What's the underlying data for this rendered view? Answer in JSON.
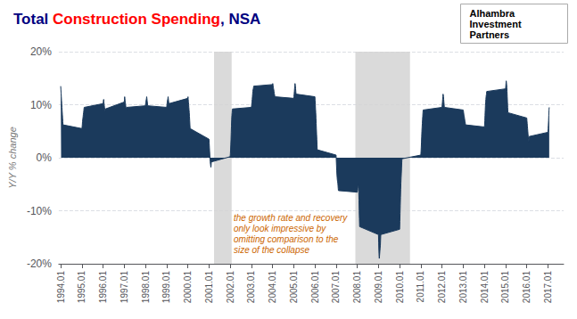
{
  "chart_data": {
    "type": "area",
    "title": "Total Construction Spending, NSA",
    "title_highlight": "Construction Spending",
    "title_color": "navy",
    "highlight_color": "red",
    "ylabel": "Y/Y % change",
    "color": "#1b3a5c",
    "grid": true,
    "xlim": [
      1993.92,
      2017.75
    ],
    "xticks": [
      1994.01,
      1995.01,
      1996.01,
      1997.01,
      1998.01,
      1999.01,
      2000.01,
      2001.01,
      2002.01,
      2003.01,
      2004.01,
      2005.01,
      2006.01,
      2007.01,
      2008.01,
      2009.01,
      2010.01,
      2011.01,
      2012.01,
      2013.01,
      2014.01,
      2015.01,
      2016.01,
      2017.01
    ],
    "ylim": [
      -20,
      20
    ],
    "yticks": [
      {
        "value": -20,
        "label": "-20%"
      },
      {
        "value": -10,
        "label": "-10%"
      },
      {
        "value": 0,
        "label": "0%"
      },
      {
        "value": 10,
        "label": "10%"
      },
      {
        "value": 20,
        "label": "20%"
      }
    ],
    "recessions": [
      [
        2001.25,
        2002.08
      ],
      [
        2007.92,
        2010.5
      ]
    ],
    "annotations": [
      {
        "text": "the growth rate and recovery\nonly look impressive by\nomitting comparison to the\nsize of the collapse",
        "color": "#cc6600"
      }
    ],
    "logo_text": [
      "Alhambra",
      "Investment",
      "Partners"
    ],
    "x": [
      1994.01,
      1994.02,
      1994.03,
      1994.04,
      1994.05,
      1994.06,
      1994.07,
      1994.08,
      1994.09,
      1994.1,
      1994.11,
      1994.12,
      1995.01,
      1995.02,
      1995.03,
      1995.04,
      1995.05,
      1995.06,
      1995.07,
      1995.08,
      1995.09,
      1995.1,
      1995.11,
      1995.12,
      1996.01,
      1996.02,
      1996.03,
      1996.04,
      1996.05,
      1996.06,
      1996.07,
      1996.08,
      1996.09,
      1996.1,
      1996.11,
      1996.12,
      1997.01,
      1997.02,
      1997.03,
      1997.04,
      1997.05,
      1997.06,
      1997.07,
      1997.08,
      1997.09,
      1997.1,
      1997.11,
      1997.12,
      1998.01,
      1998.02,
      1998.03,
      1998.04,
      1998.05,
      1998.06,
      1998.07,
      1998.08,
      1998.09,
      1998.1,
      1998.11,
      1998.12,
      1999.01,
      1999.02,
      1999.03,
      1999.04,
      1999.05,
      1999.06,
      1999.07,
      1999.08,
      1999.09,
      1999.1,
      1999.11,
      1999.12,
      2000.01,
      2000.02,
      2000.03,
      2000.04,
      2000.05,
      2000.06,
      2000.07,
      2000.08,
      2000.09,
      2000.1,
      2000.11,
      2000.12,
      2001.01,
      2001.02,
      2001.03,
      2001.04,
      2001.05,
      2001.06,
      2001.07,
      2001.08,
      2001.09,
      2001.1,
      2001.11,
      2001.12,
      2002.01,
      2002.02,
      2002.03,
      2002.04,
      2002.05,
      2002.06,
      2002.07,
      2002.08,
      2002.09,
      2002.1,
      2002.11,
      2002.12,
      2003.01,
      2003.02,
      2003.03,
      2003.04,
      2003.05,
      2003.06,
      2003.07,
      2003.08,
      2003.09,
      2003.1,
      2003.11,
      2003.12,
      2004.01,
      2004.02,
      2004.03,
      2004.04,
      2004.05,
      2004.06,
      2004.07,
      2004.08,
      2004.09,
      2004.1,
      2004.11,
      2004.12,
      2005.01,
      2005.02,
      2005.03,
      2005.04,
      2005.05,
      2005.06,
      2005.07,
      2005.08,
      2005.09,
      2005.1,
      2005.11,
      2005.12,
      2006.01,
      2006.02,
      2006.03,
      2006.04,
      2006.05,
      2006.06,
      2006.07,
      2006.08,
      2006.09,
      2006.1,
      2006.11,
      2006.12,
      2007.01,
      2007.02,
      2007.03,
      2007.04,
      2007.05,
      2007.06,
      2007.07,
      2007.08,
      2007.09,
      2007.1,
      2007.11,
      2007.12,
      2008.01,
      2008.02,
      2008.03,
      2008.04,
      2008.05,
      2008.06,
      2008.07,
      2008.08,
      2008.09,
      2008.1,
      2008.11,
      2008.12,
      2009.01,
      2009.02,
      2009.03,
      2009.04,
      2009.05,
      2009.06,
      2009.07,
      2009.08,
      2009.09,
      2009.1,
      2009.11,
      2009.12,
      2010.01,
      2010.02,
      2010.03,
      2010.04,
      2010.05,
      2010.06,
      2010.07,
      2010.08,
      2010.09,
      2010.1,
      2010.11,
      2010.12,
      2011.01,
      2011.02,
      2011.03,
      2011.04,
      2011.05,
      2011.06,
      2011.07,
      2011.08,
      2011.09,
      2011.1,
      2011.11,
      2011.12,
      2012.01,
      2012.02,
      2012.03,
      2012.04,
      2012.05,
      2012.06,
      2012.07,
      2012.08,
      2012.09,
      2012.1,
      2012.11,
      2012.12,
      2013.01,
      2013.02,
      2013.03,
      2013.04,
      2013.05,
      2013.06,
      2013.07,
      2013.08,
      2013.09,
      2013.1,
      2013.11,
      2013.12,
      2014.01,
      2014.02,
      2014.03,
      2014.04,
      2014.05,
      2014.06,
      2014.07,
      2014.08,
      2014.09,
      2014.1,
      2014.11,
      2014.12,
      2015.01,
      2015.02,
      2015.03,
      2015.04,
      2015.05,
      2015.06,
      2015.07,
      2015.08,
      2015.09,
      2015.1,
      2015.11,
      2015.12,
      2016.01,
      2016.02,
      2016.03,
      2016.04,
      2016.05,
      2016.06,
      2016.07,
      2016.08,
      2016.09,
      2016.1,
      2016.11,
      2016.12,
      2017.01,
      2017.02,
      2017.03,
      2017.04,
      2017.05,
      2017.06,
      2017.07
    ],
    "values": [
      13.5,
      12.8,
      12.2,
      11.5,
      10.8,
      10.2,
      9.5,
      8.8,
      8.2,
      7.5,
      6.8,
      6.2,
      5.5,
      5.8,
      6.2,
      6.8,
      7.2,
      7.5,
      7.8,
      8.2,
      8.5,
      8.8,
      9.2,
      9.5,
      10.2,
      10.5,
      10.8,
      11.0,
      10.5,
      10.2,
      9.8,
      9.5,
      9.2,
      9.0,
      8.8,
      9.2,
      10.5,
      11.0,
      11.5,
      11.2,
      10.8,
      10.5,
      10.2,
      9.8,
      9.5,
      9.2,
      9.0,
      9.5,
      9.8,
      10.2,
      10.5,
      10.8,
      11.0,
      11.2,
      11.5,
      11.2,
      10.8,
      10.5,
      10.2,
      9.8,
      9.5,
      9.8,
      10.2,
      10.5,
      10.8,
      11.0,
      11.2,
      11.5,
      11.2,
      10.8,
      10.5,
      10.2,
      11.2,
      11.5,
      11.0,
      10.5,
      10.0,
      9.5,
      9.0,
      8.5,
      7.8,
      7.0,
      6.2,
      5.5,
      3.5,
      2.8,
      2.0,
      1.2,
      0.5,
      -0.2,
      -0.8,
      -1.2,
      -1.5,
      -1.8,
      -1.5,
      -0.8,
      0.2,
      0.8,
      1.5,
      2.5,
      3.5,
      4.8,
      6.0,
      7.2,
      8.0,
      8.5,
      9.0,
      9.2,
      9.5,
      9.8,
      10.2,
      10.5,
      11.0,
      11.5,
      12.0,
      12.5,
      12.8,
      13.0,
      13.2,
      13.5,
      13.8,
      14.0,
      13.8,
      13.5,
      13.2,
      13.0,
      12.8,
      12.5,
      12.2,
      12.0,
      11.8,
      11.5,
      11.2,
      11.5,
      12.0,
      12.5,
      13.0,
      13.5,
      14.0,
      13.8,
      13.5,
      13.0,
      12.5,
      12.0,
      11.5,
      10.8,
      10.0,
      9.2,
      8.5,
      7.5,
      6.5,
      5.5,
      4.5,
      3.5,
      2.5,
      1.5,
      0.5,
      -0.5,
      -1.5,
      -2.5,
      -3.2,
      -3.8,
      -4.2,
      -4.5,
      -4.8,
      -5.2,
      -5.8,
      -6.2,
      -6.5,
      -6.2,
      -5.8,
      -5.2,
      -5.0,
      -5.2,
      -5.8,
      -6.5,
      -8.0,
      -10.0,
      -11.5,
      -13.0,
      -14.5,
      -16.0,
      -17.5,
      -18.5,
      -19.0,
      -18.5,
      -18.0,
      -17.5,
      -17.0,
      -16.5,
      -15.5,
      -14.5,
      -13.5,
      -12.0,
      -10.5,
      -9.0,
      -7.5,
      -6.0,
      -4.8,
      -3.8,
      -3.0,
      -2.0,
      -1.0,
      -0.2,
      0.5,
      1.2,
      2.0,
      3.0,
      4.0,
      5.0,
      5.8,
      6.5,
      7.2,
      7.8,
      8.5,
      9.0,
      9.5,
      10.0,
      10.5,
      11.0,
      11.5,
      12.0,
      11.8,
      11.5,
      11.0,
      10.5,
      10.0,
      9.5,
      9.0,
      8.8,
      8.5,
      8.2,
      8.0,
      7.8,
      7.5,
      7.2,
      7.0,
      6.8,
      6.5,
      6.2,
      5.8,
      6.2,
      7.0,
      8.0,
      9.0,
      9.8,
      10.5,
      11.0,
      11.5,
      11.8,
      12.0,
      12.5,
      13.0,
      13.5,
      14.0,
      14.5,
      14.2,
      13.8,
      13.2,
      12.5,
      11.5,
      10.5,
      9.5,
      8.5,
      7.5,
      7.0,
      6.5,
      6.0,
      5.5,
      5.0,
      4.5,
      4.0,
      3.5,
      3.0,
      3.2,
      4.0,
      4.8,
      5.5,
      6.2,
      7.0,
      8.0,
      9.0,
      9.5
    ]
  }
}
